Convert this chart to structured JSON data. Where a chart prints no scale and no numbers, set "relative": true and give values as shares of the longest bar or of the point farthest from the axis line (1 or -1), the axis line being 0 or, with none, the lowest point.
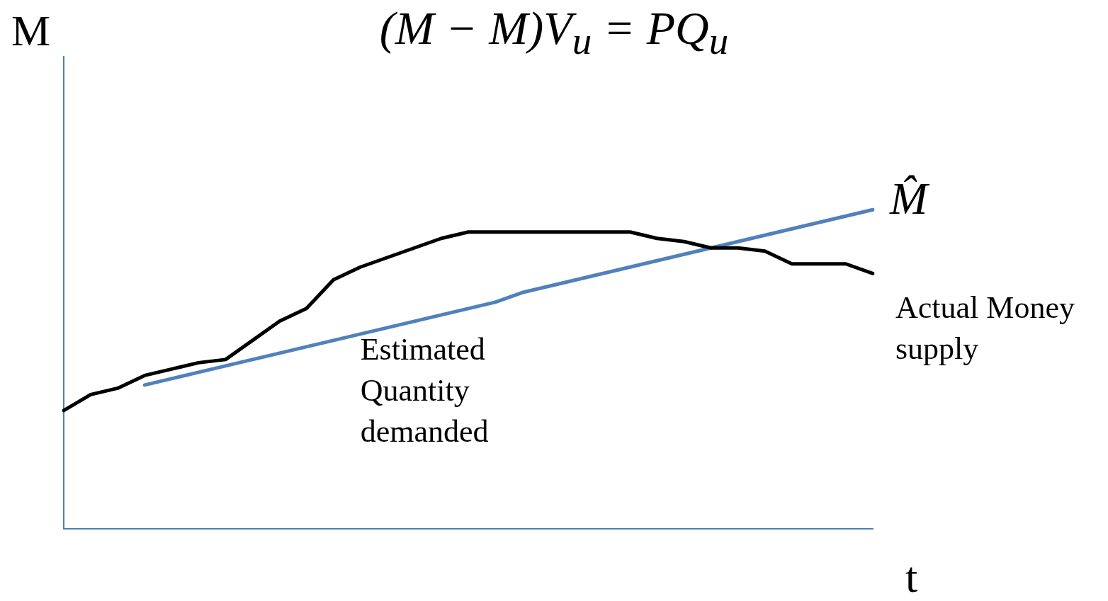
{
  "chart_data": {
    "type": "line",
    "relative": true,
    "title": "(M − M)V$_{u}$ = PQ$_{u}$",
    "xlabel": "t",
    "ylabel": "M",
    "categories": [
      null,
      null,
      null,
      null,
      null,
      null,
      null,
      null,
      null,
      null,
      null,
      null,
      null,
      null,
      null,
      null,
      null,
      null,
      null,
      null,
      null,
      null,
      null,
      null,
      null,
      null,
      null,
      null,
      null,
      null,
      null
    ],
    "series": [
      {
        "name": "Actual Money supply",
        "color": "#000000",
        "values": [
          0.37,
          0.42,
          0.44,
          0.48,
          0.5,
          0.52,
          0.53,
          0.59,
          0.65,
          0.69,
          0.78,
          0.82,
          0.85,
          0.88,
          0.91,
          0.93,
          0.93,
          0.93,
          0.93,
          0.93,
          0.93,
          0.93,
          0.91,
          0.9,
          0.88,
          0.88,
          0.87,
          0.83,
          0.83,
          0.83,
          0.8
        ]
      },
      {
        "name": "Estimated Quantity demanded",
        "color": "#4f81bd",
        "values": [
          null,
          null,
          null,
          0.45,
          0.47,
          0.49,
          0.51,
          0.53,
          0.55,
          0.57,
          0.59,
          0.61,
          0.63,
          0.65,
          0.67,
          0.69,
          0.71,
          0.74,
          0.76,
          0.78,
          0.8,
          0.82,
          0.84,
          0.86,
          0.88,
          0.9,
          0.92,
          0.94,
          0.96,
          0.98,
          1.0
        ]
      }
    ],
    "annotations": [
      "M̂"
    ],
    "legend": false,
    "grid": false,
    "marker": "none",
    "line_style": "solid"
  }
}
